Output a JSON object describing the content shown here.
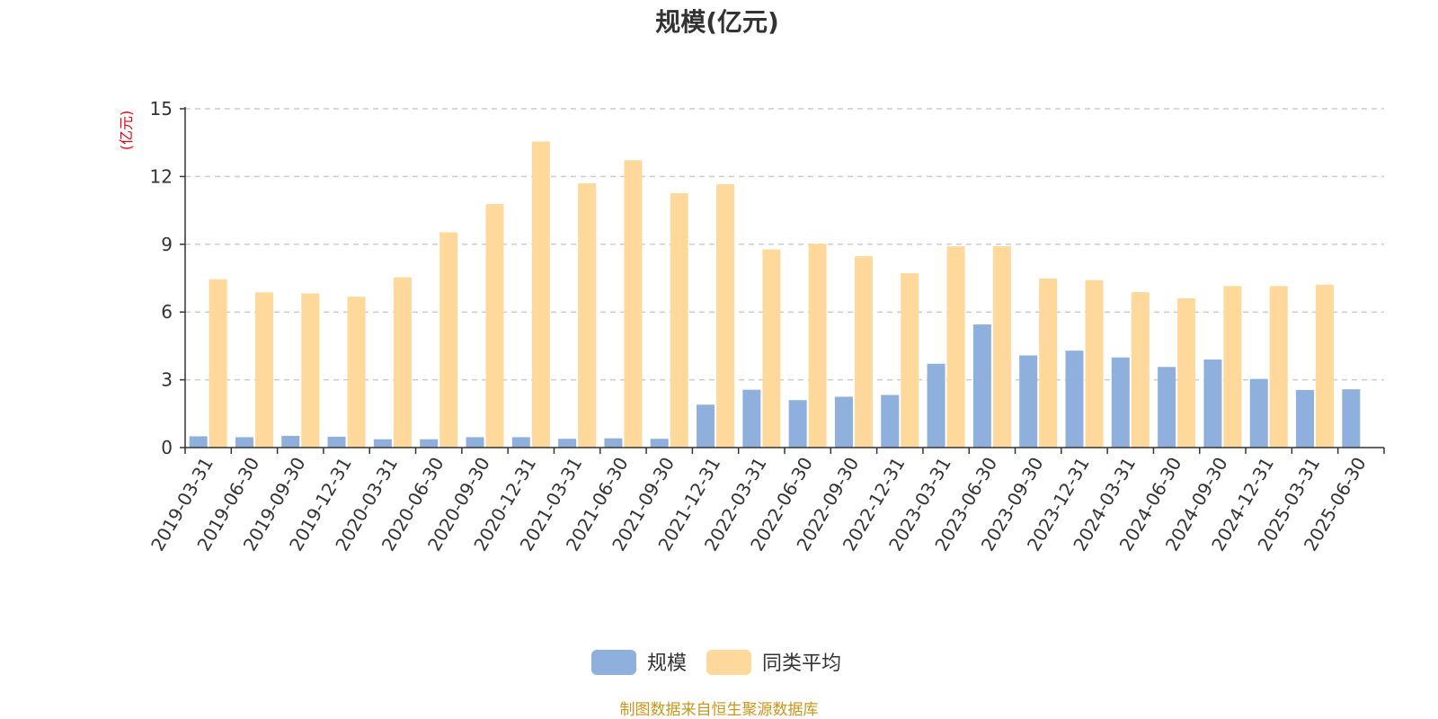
{
  "chart_data": {
    "type": "bar",
    "title": "规模(亿元)",
    "ylabel": "(亿元)",
    "ylim": [
      0,
      15
    ],
    "yticks": [
      0,
      3,
      6,
      9,
      12,
      15
    ],
    "grid": "horizontal-dashed",
    "legend_position": "bottom",
    "categories": [
      "2019-03-31",
      "2019-06-30",
      "2019-09-30",
      "2019-12-31",
      "2020-03-31",
      "2020-06-30",
      "2020-09-30",
      "2020-12-31",
      "2021-03-31",
      "2021-06-30",
      "2021-09-30",
      "2021-12-31",
      "2022-03-31",
      "2022-06-30",
      "2022-09-30",
      "2022-12-31",
      "2023-03-31",
      "2023-06-30",
      "2023-09-30",
      "2023-12-31",
      "2024-03-31",
      "2024-06-30",
      "2024-09-30",
      "2024-12-31",
      "2025-03-31",
      "2025-06-30"
    ],
    "series": [
      {
        "name": "规模",
        "color": "#8fb0dd",
        "values": [
          0.5,
          0.46,
          0.52,
          0.48,
          0.37,
          0.37,
          0.46,
          0.46,
          0.39,
          0.41,
          0.39,
          1.9,
          2.56,
          2.1,
          2.25,
          2.33,
          3.71,
          5.45,
          4.08,
          4.29,
          3.99,
          3.57,
          3.9,
          3.04,
          2.55,
          2.58
        ]
      },
      {
        "name": "同类平均",
        "color": "#fed99b",
        "values": [
          7.45,
          6.87,
          6.83,
          6.68,
          7.54,
          9.53,
          10.78,
          13.55,
          11.7,
          12.72,
          11.26,
          11.66,
          8.77,
          9.02,
          8.47,
          7.72,
          8.91,
          8.91,
          7.48,
          7.41,
          6.88,
          6.61,
          7.15,
          7.15,
          7.21,
          null
        ]
      }
    ]
  },
  "source_note": "制图数据来自恒生聚源数据库"
}
